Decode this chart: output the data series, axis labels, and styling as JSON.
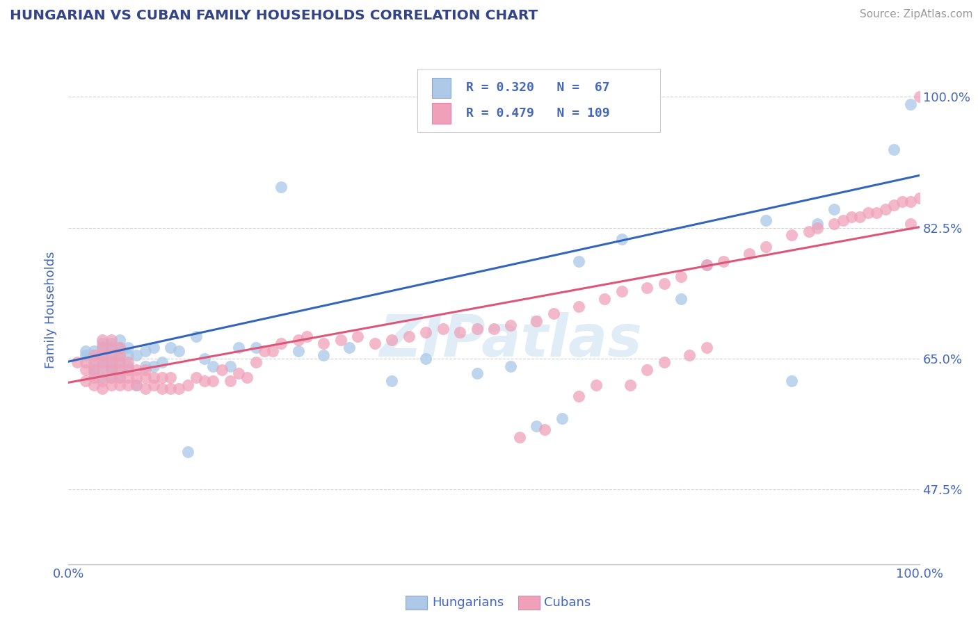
{
  "title": "HUNGARIAN VS CUBAN FAMILY HOUSEHOLDS CORRELATION CHART",
  "source": "Source: ZipAtlas.com",
  "ylabel": "Family Households",
  "xlim": [
    0.0,
    1.0
  ],
  "ylim": [
    0.375,
    1.055
  ],
  "yticks": [
    0.475,
    0.65,
    0.825,
    1.0
  ],
  "ytick_labels": [
    "47.5%",
    "65.0%",
    "82.5%",
    "100.0%"
  ],
  "xtick_labels": [
    "0.0%",
    "100.0%"
  ],
  "xticks": [
    0.0,
    1.0
  ],
  "hungarian_R": 0.32,
  "hungarian_N": 67,
  "cuban_R": 0.479,
  "cuban_N": 109,
  "hungarian_color": "#a8c8e8",
  "cuban_color": "#f0a0b8",
  "hungarian_line_color": "#3366bb",
  "cuban_line_color": "#dd5577",
  "title_color": "#334488",
  "axis_color": "#4466bb",
  "grid_color": "#cccccc",
  "hungarian_x": [
    0.02,
    0.02,
    0.03,
    0.03,
    0.03,
    0.03,
    0.04,
    0.04,
    0.04,
    0.04,
    0.04,
    0.04,
    0.04,
    0.05,
    0.05,
    0.05,
    0.05,
    0.05,
    0.05,
    0.05,
    0.05,
    0.06,
    0.06,
    0.06,
    0.06,
    0.06,
    0.06,
    0.06,
    0.07,
    0.07,
    0.07,
    0.08,
    0.08,
    0.09,
    0.09,
    0.1,
    0.1,
    0.11,
    0.12,
    0.13,
    0.14,
    0.15,
    0.16,
    0.17,
    0.19,
    0.2,
    0.22,
    0.25,
    0.27,
    0.3,
    0.33,
    0.38,
    0.42,
    0.48,
    0.52,
    0.55,
    0.58,
    0.6,
    0.65,
    0.72,
    0.75,
    0.82,
    0.85,
    0.88,
    0.9,
    0.97,
    0.99
  ],
  "hungarian_y": [
    0.655,
    0.66,
    0.63,
    0.64,
    0.655,
    0.66,
    0.625,
    0.64,
    0.65,
    0.655,
    0.66,
    0.665,
    0.67,
    0.625,
    0.635,
    0.64,
    0.65,
    0.655,
    0.66,
    0.665,
    0.67,
    0.625,
    0.635,
    0.645,
    0.655,
    0.66,
    0.665,
    0.675,
    0.64,
    0.655,
    0.665,
    0.615,
    0.655,
    0.64,
    0.66,
    0.64,
    0.665,
    0.645,
    0.665,
    0.66,
    0.525,
    0.68,
    0.65,
    0.64,
    0.64,
    0.665,
    0.665,
    0.88,
    0.66,
    0.655,
    0.665,
    0.62,
    0.65,
    0.63,
    0.64,
    0.56,
    0.57,
    0.78,
    0.81,
    0.73,
    0.775,
    0.835,
    0.62,
    0.83,
    0.85,
    0.93,
    0.99
  ],
  "cuban_x": [
    0.01,
    0.02,
    0.02,
    0.02,
    0.03,
    0.03,
    0.03,
    0.03,
    0.03,
    0.04,
    0.04,
    0.04,
    0.04,
    0.04,
    0.04,
    0.04,
    0.05,
    0.05,
    0.05,
    0.05,
    0.05,
    0.05,
    0.05,
    0.06,
    0.06,
    0.06,
    0.06,
    0.06,
    0.06,
    0.07,
    0.07,
    0.07,
    0.07,
    0.08,
    0.08,
    0.08,
    0.09,
    0.09,
    0.09,
    0.1,
    0.1,
    0.11,
    0.11,
    0.12,
    0.12,
    0.13,
    0.14,
    0.15,
    0.16,
    0.17,
    0.18,
    0.19,
    0.2,
    0.21,
    0.22,
    0.23,
    0.24,
    0.25,
    0.27,
    0.28,
    0.3,
    0.32,
    0.34,
    0.36,
    0.38,
    0.4,
    0.42,
    0.44,
    0.46,
    0.48,
    0.5,
    0.52,
    0.55,
    0.57,
    0.6,
    0.63,
    0.65,
    0.68,
    0.7,
    0.72,
    0.75,
    0.77,
    0.8,
    0.82,
    0.85,
    0.87,
    0.88,
    0.9,
    0.91,
    0.92,
    0.93,
    0.94,
    0.95,
    0.96,
    0.97,
    0.98,
    0.99,
    0.99,
    1.0,
    1.0,
    0.53,
    0.56,
    0.6,
    0.62,
    0.66,
    0.68,
    0.7,
    0.73,
    0.75
  ],
  "cuban_y": [
    0.645,
    0.62,
    0.635,
    0.645,
    0.615,
    0.625,
    0.635,
    0.645,
    0.655,
    0.61,
    0.62,
    0.635,
    0.645,
    0.655,
    0.665,
    0.675,
    0.615,
    0.625,
    0.635,
    0.645,
    0.655,
    0.665,
    0.675,
    0.615,
    0.625,
    0.635,
    0.645,
    0.655,
    0.665,
    0.615,
    0.625,
    0.635,
    0.645,
    0.615,
    0.625,
    0.635,
    0.61,
    0.625,
    0.635,
    0.615,
    0.625,
    0.61,
    0.625,
    0.61,
    0.625,
    0.61,
    0.615,
    0.625,
    0.62,
    0.62,
    0.635,
    0.62,
    0.63,
    0.625,
    0.645,
    0.66,
    0.66,
    0.67,
    0.675,
    0.68,
    0.67,
    0.675,
    0.68,
    0.67,
    0.675,
    0.68,
    0.685,
    0.69,
    0.685,
    0.69,
    0.69,
    0.695,
    0.7,
    0.71,
    0.72,
    0.73,
    0.74,
    0.745,
    0.75,
    0.76,
    0.775,
    0.78,
    0.79,
    0.8,
    0.815,
    0.82,
    0.825,
    0.83,
    0.835,
    0.84,
    0.84,
    0.845,
    0.845,
    0.85,
    0.855,
    0.86,
    0.83,
    0.86,
    0.865,
    1.0,
    0.545,
    0.555,
    0.6,
    0.615,
    0.615,
    0.635,
    0.645,
    0.655,
    0.665
  ],
  "line_hungarian_x0": 0.0,
  "line_hungarian_y0": 0.646,
  "line_hungarian_x1": 1.0,
  "line_hungarian_y1": 0.895,
  "line_cuban_x0": 0.0,
  "line_cuban_y0": 0.618,
  "line_cuban_x1": 1.0,
  "line_cuban_y1": 0.826
}
